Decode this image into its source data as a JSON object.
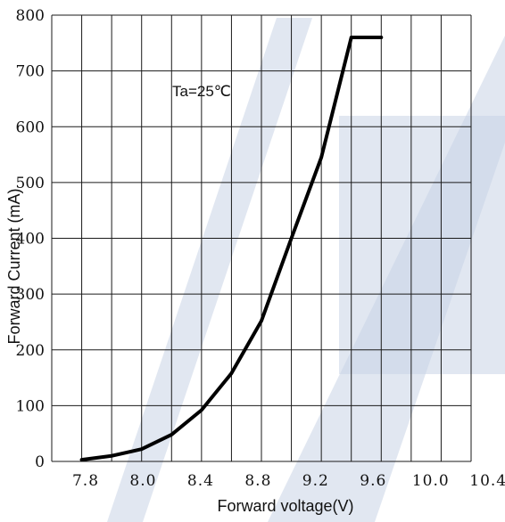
{
  "chart_data": {
    "type": "line",
    "xlabel": "Forward voltage(V)",
    "ylabel": "Forward Current (mA)",
    "xlim": [
      7.6,
      10.4
    ],
    "ylim": [
      0,
      800
    ],
    "x_tick_labels": [
      "7.8",
      "8.0",
      "8.4",
      "8.8",
      "9.2",
      "9.6",
      "10.0",
      "10.4"
    ],
    "y_tick_labels": [
      "0",
      "100",
      "200",
      "300",
      "400",
      "500",
      "600",
      "700",
      "800"
    ],
    "grid": true,
    "annotation": "Ta=25℃",
    "series": [
      {
        "x": [
          7.8,
          8.0,
          8.2,
          8.4,
          8.6,
          8.8,
          9.0,
          9.2,
          9.4,
          9.6,
          9.8
        ],
        "y": [
          3,
          10,
          22,
          48,
          92,
          158,
          252,
          400,
          545,
          760,
          760
        ],
        "color": "#000000"
      }
    ]
  }
}
